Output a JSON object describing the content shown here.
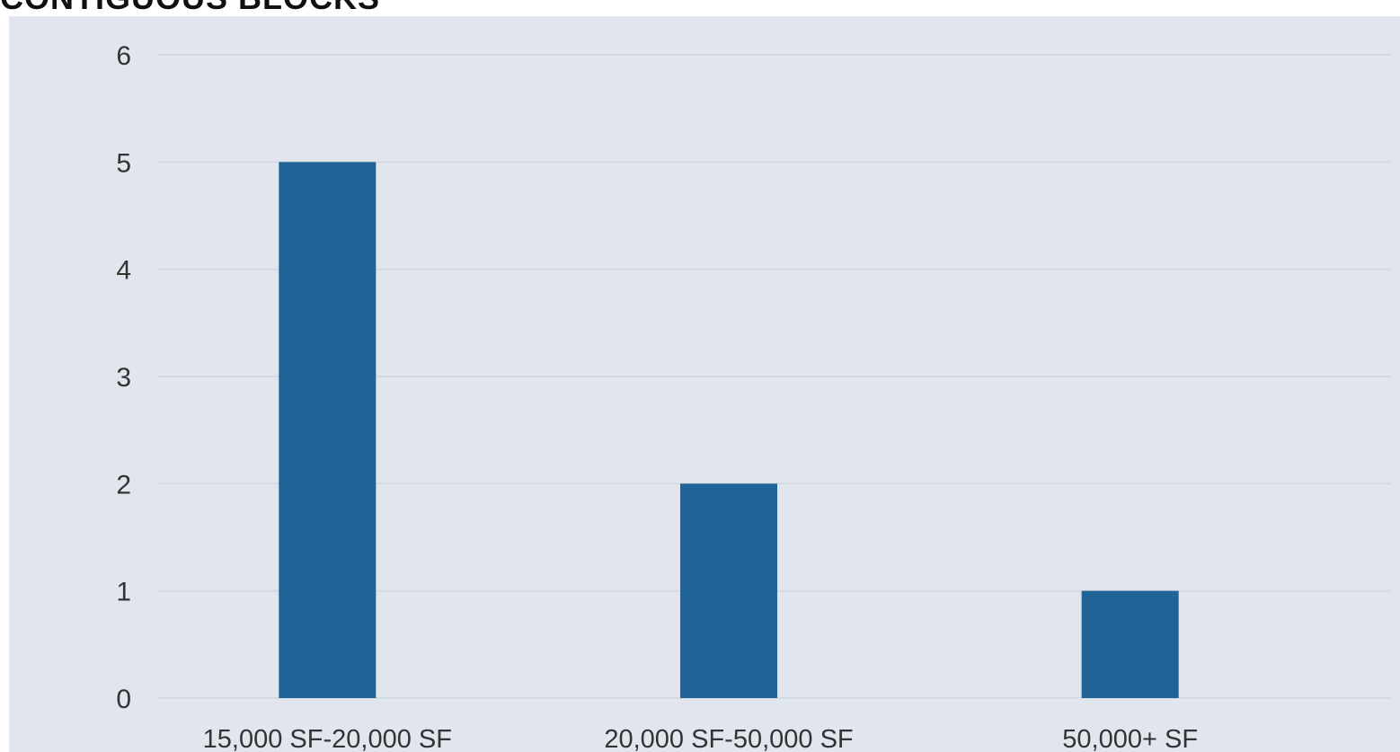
{
  "title": "CONTIGUOUS BLOCKS",
  "colors": {
    "panel_background": "#e1e6ee",
    "bar": "#206396",
    "gridline": "#d3d9e2",
    "text": "#333333"
  },
  "chart_data": {
    "type": "bar",
    "title": "CONTIGUOUS BLOCKS",
    "categories": [
      "15,000 SF-20,000 SF",
      "20,000 SF-50,000 SF",
      "50,000+ SF"
    ],
    "values": [
      5,
      2,
      1
    ],
    "xlabel": "",
    "ylabel": "",
    "ylim": [
      0,
      6
    ],
    "yticks": [
      0,
      1,
      2,
      3,
      4,
      5,
      6
    ],
    "grid": true,
    "legend": "none"
  }
}
